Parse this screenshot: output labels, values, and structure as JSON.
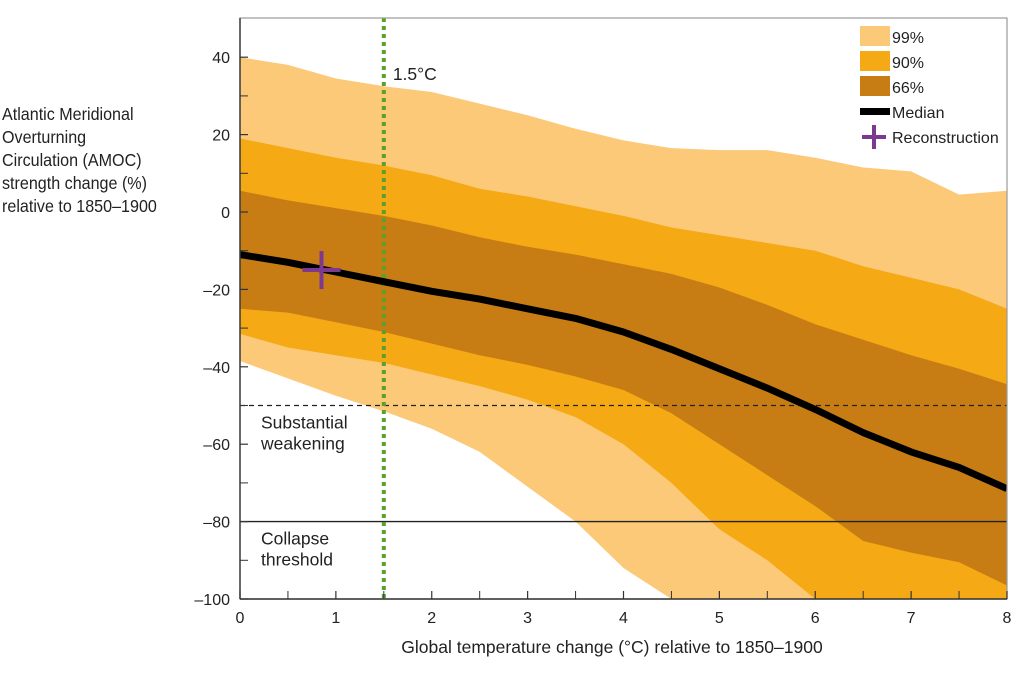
{
  "chart_data": {
    "type": "area",
    "title": "",
    "xlabel": "Global temperature change (°C) relative to 1850–1900",
    "ylabel_lines": [
      "Atlantic Meridional",
      "Overturning",
      "Circulation (AMOC)",
      "strength change (%)",
      "relative to 1850–1900"
    ],
    "xlim": [
      0,
      8
    ],
    "ylim": [
      -100,
      50
    ],
    "x_ticks": [
      0,
      1,
      2,
      3,
      4,
      5,
      6,
      7,
      8
    ],
    "x_tick_labels": [
      "0",
      "1",
      "2",
      "3",
      "4",
      "5",
      "6",
      "7",
      "8"
    ],
    "x_minor_ticks": [
      0.5,
      1.5,
      2.5,
      3.5,
      4.5,
      5.5,
      6.5,
      7.5
    ],
    "y_ticks": [
      40,
      20,
      0,
      -20,
      -40,
      -60,
      -80,
      -100
    ],
    "y_tick_labels": [
      "40",
      "20",
      "0",
      "–20",
      "–40",
      "–60",
      "–80",
      "–100"
    ],
    "y_minor_ticks": [
      30,
      10,
      -10,
      -30,
      -50,
      -70,
      -90
    ],
    "grid": false,
    "legend_position": "top-right",
    "x": [
      0,
      0.5,
      1,
      1.5,
      2,
      2.5,
      3,
      3.5,
      4,
      4.5,
      5,
      5.5,
      6,
      6.5,
      7,
      7.5,
      8
    ],
    "series": [
      {
        "name": "99%",
        "kind": "band",
        "color": "#fbc978",
        "upper": [
          40,
          38,
          34.5,
          32.5,
          31,
          28,
          25,
          21.5,
          18.5,
          16.5,
          16,
          16,
          14,
          11.5,
          10.5,
          4.5,
          5.5
        ],
        "lower": [
          -38.5,
          -43,
          -47.5,
          -51.5,
          -56,
          -62,
          -71,
          -80,
          -92,
          -100,
          -100,
          -100,
          -100,
          -100,
          -100,
          -100,
          -100
        ]
      },
      {
        "name": "90%",
        "kind": "band",
        "color": "#f5a914",
        "upper": [
          19,
          16.5,
          14,
          12,
          9.5,
          6,
          4,
          1.5,
          -1,
          -4,
          -6,
          -8,
          -10,
          -14,
          -17,
          -20,
          -25
        ],
        "lower": [
          -31.5,
          -35,
          -37,
          -39,
          -42,
          -45,
          -48.5,
          -53,
          -60,
          -70,
          -82,
          -90,
          -100,
          -100,
          -100,
          -100,
          -100
        ]
      },
      {
        "name": "66%",
        "kind": "band",
        "color": "#c77d13",
        "upper": [
          5.5,
          3,
          1,
          -1,
          -3.5,
          -6.5,
          -9,
          -11,
          -13.5,
          -16,
          -19.5,
          -24,
          -29,
          -33,
          -37,
          -40.5,
          -44.5
        ],
        "lower": [
          -25,
          -26,
          -28.5,
          -31,
          -34,
          -37,
          -39.5,
          -42.5,
          -46,
          -52,
          -60,
          -68,
          -76,
          -85,
          -88,
          -90.5,
          -96.5
        ]
      },
      {
        "name": "Median",
        "kind": "line",
        "color": "#000000",
        "values": [
          -11,
          -13,
          -15.5,
          -18,
          -20.5,
          -22.5,
          -25,
          -27.5,
          -31,
          -35.5,
          -40.5,
          -45.5,
          -51,
          -57,
          -62,
          -66,
          -71.5
        ]
      },
      {
        "name": "Reconstruction",
        "kind": "marker",
        "marker": "plus",
        "color": "#7b3a8f",
        "point": {
          "x": 0.85,
          "y": -15
        }
      }
    ],
    "annotations": [
      {
        "type": "vline",
        "x": 1.5,
        "label": "1.5°C",
        "style": "dotted",
        "color": "#5aa02c"
      },
      {
        "type": "hline",
        "y": -50,
        "label_lines": [
          "Substantial",
          "weakening"
        ],
        "style": "dashed",
        "color": "#222222"
      },
      {
        "type": "hline",
        "y": -80,
        "label_lines": [
          "Collapse",
          "threshold"
        ],
        "style": "solid",
        "color": "#222222"
      }
    ],
    "legend": [
      {
        "label": "99%",
        "swatch": "box",
        "color": "#fbc978"
      },
      {
        "label": "90%",
        "swatch": "box",
        "color": "#f5a914"
      },
      {
        "label": "66%",
        "swatch": "box",
        "color": "#c77d13"
      },
      {
        "label": "Median",
        "swatch": "line",
        "color": "#000000"
      },
      {
        "label": "Reconstruction",
        "swatch": "plus",
        "color": "#7b3a8f"
      }
    ]
  }
}
